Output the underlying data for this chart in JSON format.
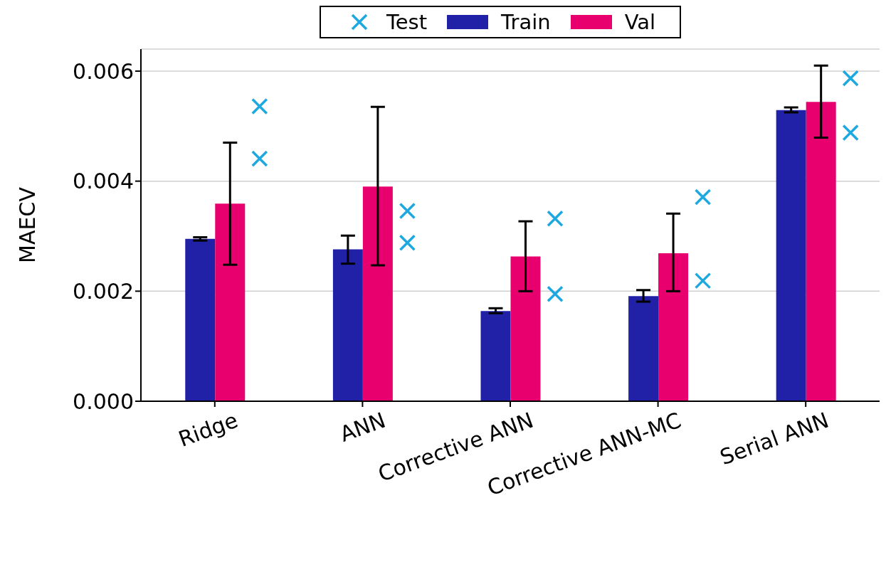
{
  "chart_data": {
    "type": "bar",
    "ylabel": "MAECV",
    "categories": [
      "Ridge",
      "ANN",
      "Corrective ANN",
      "Corrective ANN-MC",
      "Serial ANN"
    ],
    "series": [
      {
        "name": "Test",
        "type": "scatter",
        "color": "#1ea8e0",
        "marker": "cross",
        "x": [
          "Ridge",
          "Ridge",
          "ANN",
          "ANN",
          "Corrective ANN",
          "Corrective ANN",
          "Corrective ANN-MC",
          "Corrective ANN-MC",
          "Serial ANN",
          "Serial ANN"
        ],
        "values": [
          0.00536,
          0.00441,
          0.00346,
          0.00288,
          0.00332,
          0.00195,
          0.00371,
          0.00219,
          0.00587,
          0.00488
        ]
      },
      {
        "name": "Train",
        "color": "#2121a8",
        "values": [
          0.00295,
          0.00276,
          0.00164,
          0.00191,
          0.00529
        ],
        "errors": [
          [
            0.00292,
            0.00298
          ],
          [
            0.0025,
            0.00301
          ],
          [
            0.0016,
            0.00169
          ],
          [
            0.00181,
            0.00202
          ],
          [
            0.00525,
            0.00534
          ]
        ]
      },
      {
        "name": "Val",
        "color": "#e8006e",
        "values": [
          0.00359,
          0.0039,
          0.00263,
          0.00269,
          0.00544
        ],
        "errors": [
          [
            0.00248,
            0.0047
          ],
          [
            0.00247,
            0.00535
          ],
          [
            0.002,
            0.00327
          ],
          [
            0.002,
            0.00341
          ],
          [
            0.00479,
            0.0061
          ]
        ]
      }
    ],
    "ylim": [
      0,
      0.0064
    ],
    "yticks": [
      {
        "value": 0,
        "label": "0.000"
      },
      {
        "value": 0.002,
        "label": "0.002"
      },
      {
        "value": 0.004,
        "label": "0.004"
      },
      {
        "value": 0.006,
        "label": "0.006"
      }
    ],
    "grid": "y",
    "legend": "top"
  }
}
